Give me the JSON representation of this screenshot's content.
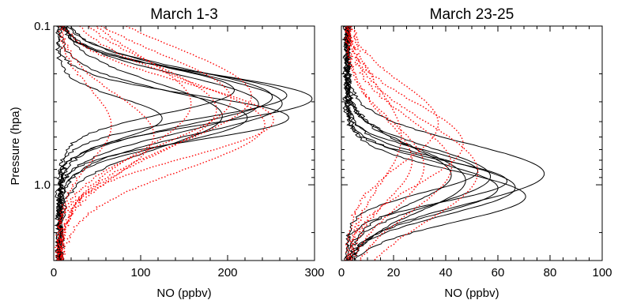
{
  "figure": {
    "ylabel": "Pressure (hpa)"
  },
  "chart_data": [
    {
      "type": "line",
      "title": "March 1-3",
      "xlabel": "NO (ppbv)",
      "ylabel": "Pressure (hpa)",
      "xlim": [
        0,
        300
      ],
      "ylim": [
        3.0,
        0.1
      ],
      "yscale": "log",
      "x_ticks": [
        "0",
        "100",
        "200",
        "300"
      ],
      "y_ticks": [
        "0.1",
        "1.0"
      ],
      "legend": "none",
      "series": [
        {
          "style": "solid",
          "color": "#000000",
          "peak_pressure_range": [
            0.22,
            0.4
          ],
          "peak_values": [
            120,
            185,
            200,
            215,
            230,
            245,
            255,
            260,
            265,
            290
          ]
        },
        {
          "style": "dotted",
          "color": "#ff0000",
          "peak_pressure_range": [
            0.25,
            0.5
          ],
          "peak_values": [
            60,
            110,
            150,
            180,
            200,
            220,
            235,
            250
          ]
        }
      ]
    },
    {
      "type": "line",
      "title": "March 23-25",
      "xlabel": "NO (ppbv)",
      "xlim": [
        0,
        100
      ],
      "ylim": [
        3.0,
        0.1
      ],
      "yscale": "log",
      "x_ticks": [
        "0",
        "20",
        "40",
        "60",
        "80",
        "100"
      ],
      "legend": "none",
      "series": [
        {
          "style": "solid",
          "color": "#000000",
          "peak_pressure_range": [
            0.8,
            1.2
          ],
          "peak_values": [
            40,
            45,
            50,
            55,
            58,
            62,
            65,
            68,
            75
          ]
        },
        {
          "style": "dotted",
          "color": "#ff0000",
          "peak_pressure_range": [
            0.4,
            1.0
          ],
          "peak_values": [
            20,
            25,
            30,
            35,
            40,
            45,
            50
          ]
        }
      ]
    }
  ]
}
